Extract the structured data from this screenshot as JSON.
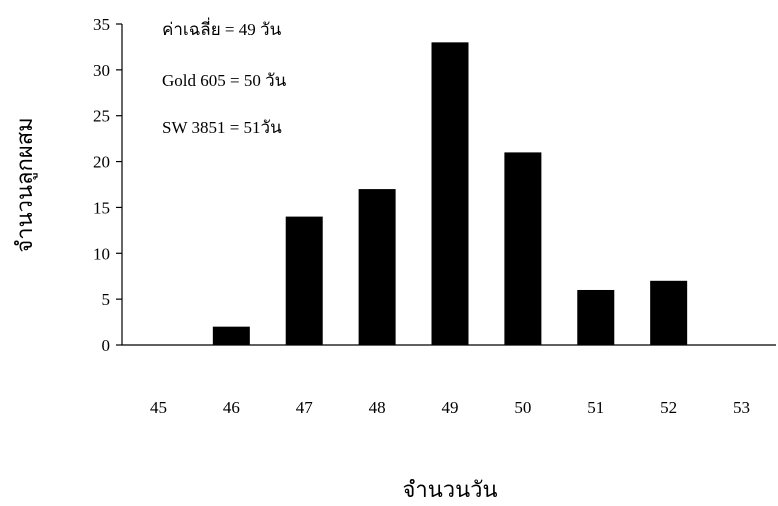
{
  "chart_data": {
    "type": "bar",
    "categories": [
      "45",
      "46",
      "47",
      "48",
      "49",
      "50",
      "51",
      "52",
      "53"
    ],
    "values": [
      0,
      2,
      14,
      17,
      33,
      21,
      6,
      7,
      0
    ],
    "xlabel": "จำนวนวัน",
    "ylabel": "จำนวนลูกผสม",
    "ylim": [
      0,
      35
    ],
    "yticks": [
      0,
      5,
      10,
      15,
      20,
      25,
      30,
      35
    ],
    "grid": false,
    "bar_color": "#000000",
    "annotations": [
      "ค่าเฉลี่ย =  49 วัน",
      "Gold 605 = 50 วัน",
      "SW 3851 =  51วัน"
    ]
  }
}
